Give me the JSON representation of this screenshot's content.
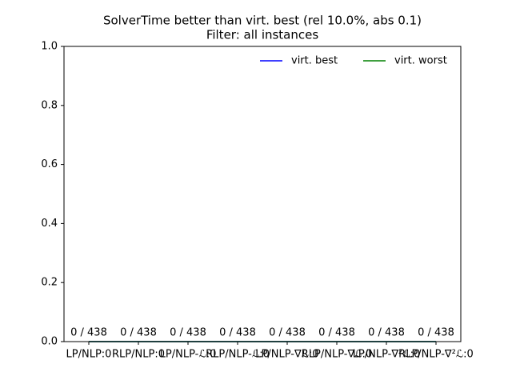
{
  "chart_data": {
    "type": "bar",
    "title": "SolverTime better than virt. best (rel 10.0%, abs 0.1)",
    "subtitle": "Filter: all instances",
    "categories": [
      "LP/NLP:0",
      "RLP/NLP:0",
      "LP/NLP-ℒ:0",
      "RLP/NLP-ℒ:0",
      "LP/NLP-∇ℒ:0",
      "RLP/NLP-∇ℒ:0",
      "LP/NLP-∇²ℒ:0",
      "RLP/NLP-∇²ℒ:0"
    ],
    "values": [
      0,
      0,
      0,
      0,
      0,
      0,
      0,
      0
    ],
    "value_labels": [
      "0 / 438",
      "0 / 438",
      "0 / 438",
      "0 / 438",
      "0 / 438",
      "0 / 438",
      "0 / 438",
      "0 / 438"
    ],
    "color": "#1f77b4",
    "series": [
      {
        "name": "virt. best",
        "color": "#0000ff",
        "values": [
          0,
          0,
          0,
          0,
          0,
          0,
          0,
          0
        ]
      },
      {
        "name": "virt. worst",
        "color": "#008000",
        "values": [
          0,
          0,
          0,
          0,
          0,
          0,
          0,
          0
        ]
      }
    ],
    "ylim": [
      0,
      1
    ],
    "yticks": [
      {
        "value": 0,
        "label": "0.0"
      },
      {
        "value": 0.2,
        "label": "0.2"
      },
      {
        "value": 0.4,
        "label": "0.4"
      },
      {
        "value": 0.6,
        "label": "0.6"
      },
      {
        "value": 0.8,
        "label": "0.8"
      },
      {
        "value": 1,
        "label": "1.0"
      }
    ],
    "legend": "upper right"
  }
}
